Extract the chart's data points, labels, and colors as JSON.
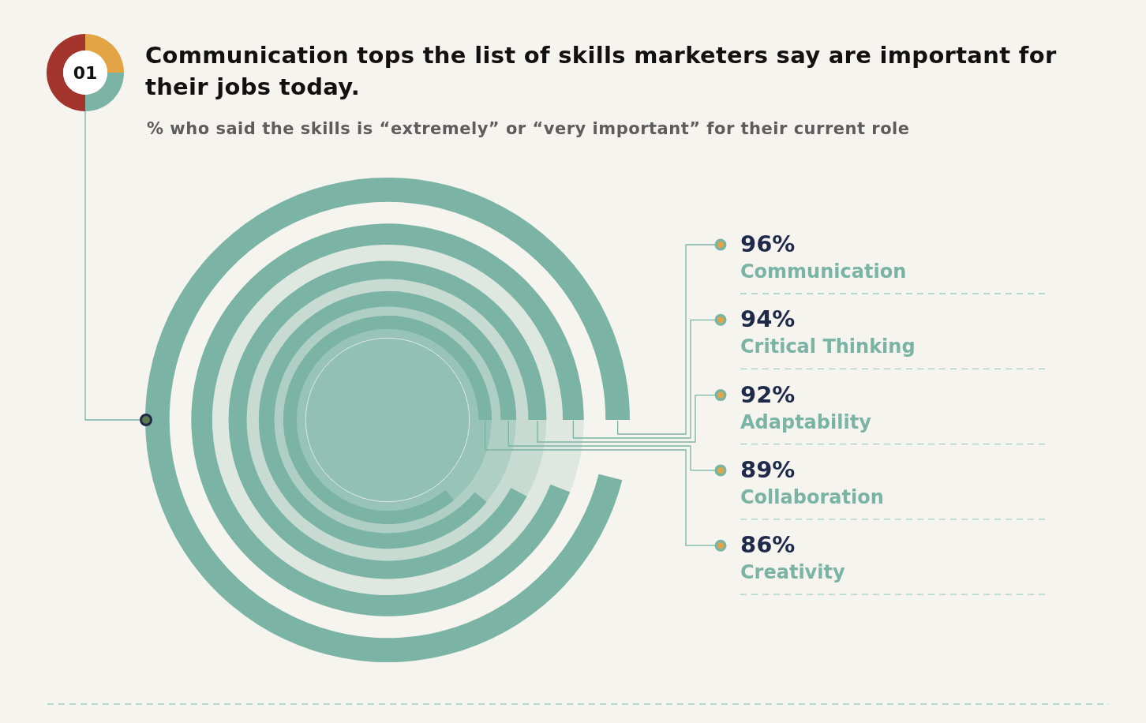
{
  "chart_data": {
    "type": "other",
    "title": "Communication tops the list of skills marketers say are important for their jobs today.",
    "subtitle": "% who said the skills is “extremely” or “very important” for their current role",
    "categories": [
      "Communication",
      "Critical Thinking",
      "Adaptability",
      "Collaboration",
      "Creativity"
    ],
    "values": [
      96,
      94,
      92,
      89,
      86
    ],
    "value_labels": [
      "96%",
      "94%",
      "92%",
      "89%",
      "86%"
    ],
    "color": "#7bb3a5",
    "annotations": [
      "01"
    ]
  }
}
